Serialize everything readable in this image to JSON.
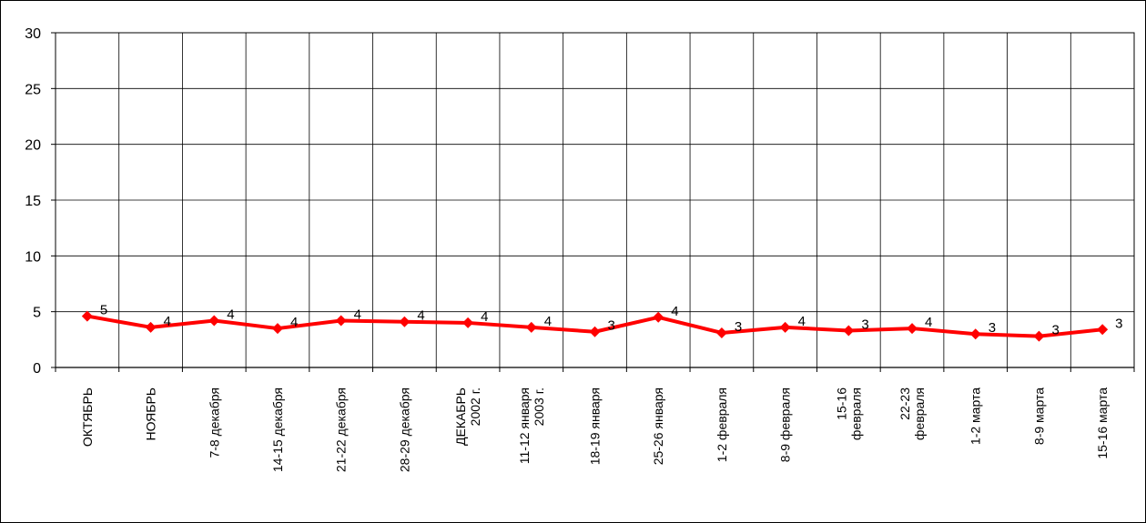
{
  "chart_data": {
    "type": "line",
    "title": "",
    "xlabel": "",
    "ylabel": "",
    "ylim": [
      0,
      30
    ],
    "yticks": [
      0,
      5,
      10,
      15,
      20,
      25,
      30
    ],
    "grid": true,
    "legend": "none",
    "categories": [
      [
        "ОКТЯБРЬ"
      ],
      [
        "НОЯБРЬ"
      ],
      [
        "7-8 декабря"
      ],
      [
        "14-15 декабря"
      ],
      [
        "21-22 декабря"
      ],
      [
        "28-29 декабря"
      ],
      [
        "ДЕКАБРЬ",
        "2002 г."
      ],
      [
        "11-12 января",
        "2003 г."
      ],
      [
        "18-19 января"
      ],
      [
        "25-26 января"
      ],
      [
        "1-2 февраля"
      ],
      [
        "8-9 февраля"
      ],
      [
        "15-16",
        "февраля"
      ],
      [
        "22-23",
        "февраля"
      ],
      [
        "1-2 марта"
      ],
      [
        "8-9 марта"
      ],
      [
        "15-16 марта"
      ]
    ],
    "series": [
      {
        "values": [
          4.6,
          3.6,
          4.2,
          3.5,
          4.2,
          4.1,
          4.0,
          3.6,
          3.2,
          4.5,
          3.1,
          3.6,
          3.3,
          3.5,
          3.0,
          2.8,
          3.4
        ],
        "data_labels": [
          "5",
          "4",
          "4",
          "4",
          "4",
          "4",
          "4",
          "4",
          "3",
          "4",
          "3",
          "4",
          "3",
          "4",
          "3",
          "3",
          "3"
        ]
      }
    ],
    "colors": {
      "line": "#ff0000",
      "grid": "#000000",
      "frame": "#000000",
      "background": "#ffffff"
    }
  }
}
